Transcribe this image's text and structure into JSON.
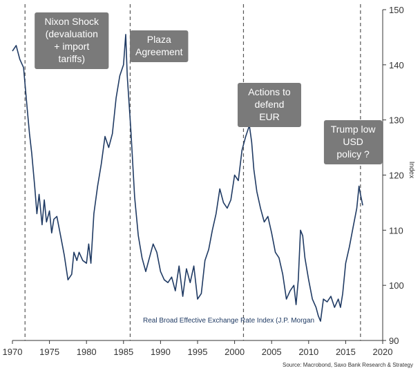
{
  "chart_data": {
    "type": "line",
    "series": [
      {
        "name": "Real Broad Effective Exchange Rate Index (J.P. Morgan",
        "color": "#1f3a63",
        "x": [
          1970.0,
          1970.5,
          1971.0,
          1971.5,
          1972.0,
          1972.3,
          1972.6,
          1973.0,
          1973.3,
          1973.6,
          1974.0,
          1974.3,
          1974.6,
          1975.0,
          1975.3,
          1975.6,
          1976.0,
          1976.5,
          1977.0,
          1977.5,
          1978.0,
          1978.3,
          1978.7,
          1979.0,
          1979.5,
          1980.0,
          1980.3,
          1980.6,
          1981.0,
          1981.5,
          1982.0,
          1982.5,
          1983.0,
          1983.5,
          1984.0,
          1984.5,
          1985.0,
          1985.3,
          1985.5,
          1985.8,
          1986.0,
          1986.5,
          1987.0,
          1987.5,
          1988.0,
          1988.5,
          1989.0,
          1989.5,
          1990.0,
          1990.5,
          1991.0,
          1991.5,
          1992.0,
          1992.5,
          1993.0,
          1993.5,
          1994.0,
          1994.5,
          1995.0,
          1995.5,
          1996.0,
          1996.5,
          1997.0,
          1997.5,
          1998.0,
          1998.5,
          1999.0,
          1999.5,
          2000.0,
          2000.5,
          2001.0,
          2001.5,
          2002.0,
          2002.3,
          2002.6,
          2003.0,
          2003.5,
          2004.0,
          2004.5,
          2005.0,
          2005.5,
          2006.0,
          2006.5,
          2007.0,
          2007.5,
          2008.0,
          2008.3,
          2008.6,
          2008.9,
          2009.2,
          2009.5,
          2010.0,
          2010.5,
          2011.0,
          2011.3,
          2011.6,
          2012.0,
          2012.5,
          2013.0,
          2013.5,
          2014.0,
          2014.3,
          2014.6,
          2015.0,
          2015.5,
          2016.0,
          2016.5,
          2016.8,
          2017.0,
          2017.3
        ],
        "values": [
          142.5,
          143.5,
          141.0,
          139.5,
          132.0,
          127.5,
          124.0,
          118.0,
          113.0,
          116.5,
          111.0,
          115.5,
          111.5,
          113.5,
          109.5,
          112.0,
          112.5,
          109.0,
          105.5,
          101.0,
          102.0,
          106.0,
          104.5,
          106.0,
          104.5,
          104.0,
          107.5,
          104.0,
          113.0,
          118.0,
          122.0,
          127.0,
          125.0,
          127.5,
          134.0,
          138.0,
          140.0,
          145.5,
          138.0,
          132.0,
          128.0,
          116.0,
          109.0,
          105.0,
          102.5,
          105.0,
          107.5,
          106.0,
          102.5,
          101.0,
          100.5,
          101.5,
          99.0,
          103.5,
          98.0,
          103.0,
          100.5,
          103.5,
          97.5,
          98.5,
          104.5,
          106.5,
          110.0,
          113.0,
          117.5,
          115.0,
          114.0,
          115.5,
          120.0,
          119.0,
          124.5,
          127.0,
          129.0,
          126.0,
          121.0,
          117.0,
          114.0,
          111.5,
          112.5,
          109.5,
          106.0,
          105.0,
          102.0,
          97.5,
          99.0,
          100.0,
          96.5,
          101.0,
          110.0,
          109.0,
          105.0,
          101.0,
          97.5,
          96.0,
          94.5,
          93.5,
          97.5,
          97.0,
          98.0,
          96.0,
          97.5,
          96.0,
          98.5,
          104.0,
          107.0,
          110.5,
          114.0,
          118.0,
          116.5,
          114.5
        ]
      }
    ],
    "xlim": [
      1970,
      2020
    ],
    "ylim": [
      90,
      150
    ],
    "xticks": [
      1970,
      1975,
      1980,
      1985,
      1990,
      1995,
      2000,
      2005,
      2010,
      2015,
      2020
    ],
    "xtick_labels": [
      "1970",
      "1975",
      "1980",
      "1985",
      "1990",
      "1995",
      "2000",
      "2005",
      "2010",
      "2015",
      "2020"
    ],
    "yticks": [
      90,
      100,
      110,
      120,
      130,
      140,
      150
    ],
    "ytick_labels": [
      "90",
      "100",
      "110",
      "120",
      "130",
      "140",
      "150"
    ],
    "ylabel": "Index",
    "y_axis_side": "right",
    "grid": false,
    "vlines": [
      1971.7,
      1985.9,
      2001.2,
      2017.0
    ],
    "vline_color": "#555555",
    "annotations": [
      {
        "x": 1978.0,
        "lines": [
          "Nixon Shock",
          "(devaluation",
          "+ import",
          "tariffs)"
        ]
      },
      {
        "x": 1989.8,
        "lines": [
          "Plaza",
          "Agreement"
        ]
      },
      {
        "x": 2004.7,
        "lines": [
          "Actions to",
          "defend",
          "EUR"
        ]
      },
      {
        "x": 2016.0,
        "lines": [
          "Trump low",
          "USD",
          "policy ?"
        ]
      }
    ],
    "annotation_box_color": "#7a7a7a",
    "series_label": "Real Broad Effective Exchange Rate Index (J.P. Morgan",
    "source": "Source: Macrobond, Saxo Bank Research & Strategy"
  }
}
